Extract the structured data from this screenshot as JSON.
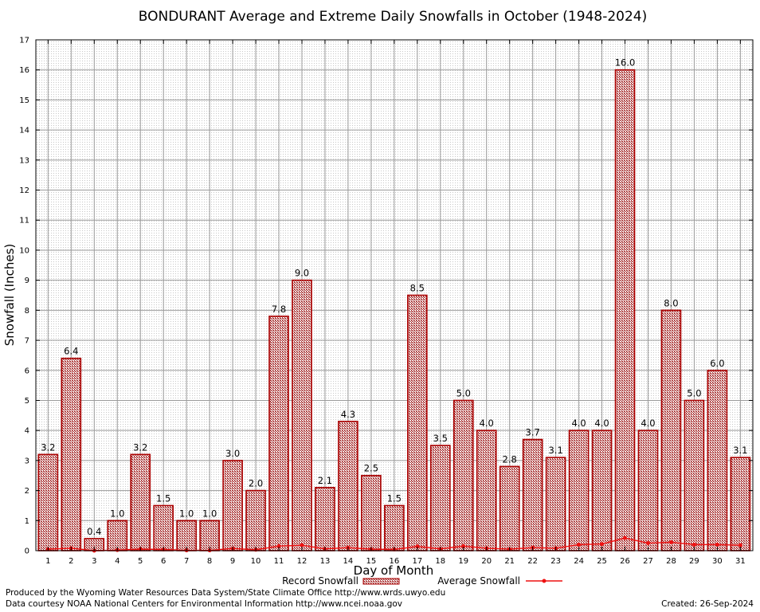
{
  "chart_data": {
    "type": "bar",
    "title": "BONDURANT Average and Extreme Daily Snowfalls in October (1948-2024)",
    "xlabel": "Day of Month",
    "ylabel": "Snowfall (Inches)",
    "ylim": [
      0,
      17
    ],
    "yticks": [
      "0",
      "1",
      "2",
      "3",
      "4",
      "5",
      "6",
      "7",
      "8",
      "9",
      "10",
      "11",
      "12",
      "13",
      "14",
      "15",
      "16",
      "17"
    ],
    "categories": [
      "1",
      "2",
      "3",
      "4",
      "5",
      "6",
      "7",
      "8",
      "9",
      "10",
      "11",
      "12",
      "13",
      "14",
      "15",
      "16",
      "17",
      "18",
      "19",
      "20",
      "21",
      "22",
      "23",
      "24",
      "25",
      "26",
      "27",
      "28",
      "29",
      "30",
      "31"
    ],
    "grid": true,
    "legend_position": "bottom",
    "series": [
      {
        "name": "Record Snowfall",
        "kind": "bar",
        "color": "#aa0000",
        "values": [
          3.2,
          6.4,
          0.4,
          1.0,
          3.2,
          1.5,
          1.0,
          1.0,
          3.0,
          2.0,
          7.8,
          9.0,
          2.1,
          4.3,
          2.5,
          1.5,
          8.5,
          3.5,
          5.0,
          4.0,
          2.8,
          3.7,
          3.1,
          4.0,
          4.0,
          16.0,
          4.0,
          8.0,
          5.0,
          6.0,
          3.1
        ],
        "labels": [
          "3.2",
          "6.4",
          "0.4",
          "1.0",
          "3.2",
          "1.5",
          "1.0",
          "1.0",
          "3.0",
          "2.0",
          "7.8",
          "9.0",
          "2.1",
          "4.3",
          "2.5",
          "1.5",
          "8.5",
          "3.5",
          "5.0",
          "4.0",
          "2.8",
          "3.7",
          "3.1",
          "4.0",
          "4.0",
          "16.0",
          "4.0",
          "8.0",
          "5.0",
          "6.0",
          "3.1"
        ]
      },
      {
        "name": "Average Snowfall",
        "kind": "line",
        "color": "#ee1111",
        "values": [
          0.05,
          0.08,
          0.0,
          0.02,
          0.05,
          0.04,
          0.01,
          0.01,
          0.07,
          0.03,
          0.15,
          0.18,
          0.06,
          0.1,
          0.05,
          0.04,
          0.14,
          0.06,
          0.15,
          0.08,
          0.05,
          0.1,
          0.08,
          0.2,
          0.22,
          0.42,
          0.25,
          0.28,
          0.2,
          0.2,
          0.18
        ]
      }
    ]
  },
  "footer": {
    "producer": "Produced by the Wyoming Water Resources Data System/State Climate Office http://www.wrds.uwyo.edu",
    "courtesy": "Data courtesy NOAA National Centers for Environmental Information http://www.ncei.noaa.gov",
    "created": "Created:  26-Sep-2024"
  }
}
